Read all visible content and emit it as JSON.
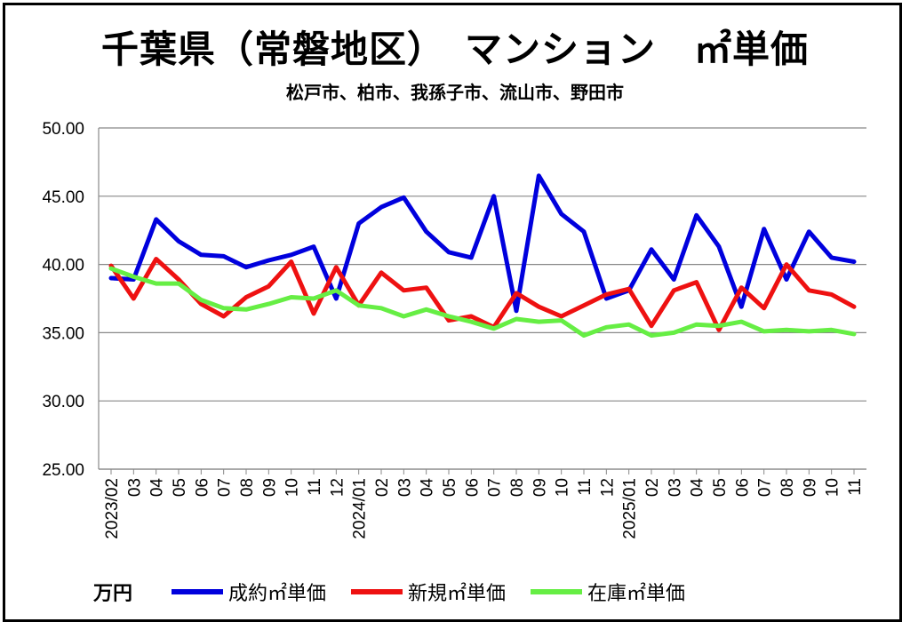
{
  "chart_data": {
    "type": "line",
    "title": "千葉県（常磐地区）　マンション　㎡単価",
    "subtitle": "松戸市、柏市、我孫子市、流山市、野田市",
    "ylabel_unit": "万円",
    "ylim": [
      25,
      50
    ],
    "yticks": [
      "50.00",
      "45.00",
      "40.00",
      "35.00",
      "30.00",
      "25.00"
    ],
    "ytick_values": [
      50,
      45,
      40,
      35,
      30,
      25
    ],
    "categories": [
      "2023/02",
      "03",
      "04",
      "05",
      "06",
      "07",
      "08",
      "09",
      "10",
      "11",
      "12",
      "2024/01",
      "02",
      "03",
      "04",
      "05",
      "06",
      "07",
      "08",
      "09",
      "10",
      "11",
      "12",
      "2025/01",
      "02",
      "03",
      "04",
      "05",
      "06",
      "07",
      "08",
      "09",
      "10",
      "11"
    ],
    "series": [
      {
        "name": "成約㎡単価",
        "color": "#0000dd",
        "values": [
          39.0,
          38.9,
          43.3,
          41.7,
          40.7,
          40.6,
          39.8,
          40.3,
          40.7,
          41.3,
          37.5,
          43.0,
          44.2,
          44.9,
          42.4,
          40.9,
          40.5,
          45.0,
          36.6,
          46.5,
          43.7,
          42.4,
          37.5,
          38.1,
          41.1,
          38.9,
          43.6,
          41.3,
          36.9,
          42.6,
          38.9,
          42.4,
          40.5,
          40.2
        ]
      },
      {
        "name": "新規㎡単価",
        "color": "#ee1111",
        "values": [
          39.9,
          37.5,
          40.4,
          38.9,
          37.1,
          36.2,
          37.6,
          38.4,
          40.2,
          36.4,
          39.8,
          37.0,
          39.4,
          38.1,
          38.3,
          35.9,
          36.2,
          35.4,
          37.9,
          36.9,
          36.2,
          37.0,
          37.8,
          38.2,
          35.5,
          38.1,
          38.7,
          35.2,
          38.3,
          36.8,
          40.0,
          38.1,
          37.8,
          36.9
        ]
      },
      {
        "name": "在庫㎡単価",
        "color": "#66ee44",
        "values": [
          39.7,
          39.1,
          38.6,
          38.6,
          37.4,
          36.8,
          36.7,
          37.1,
          37.6,
          37.5,
          38.1,
          37.0,
          36.8,
          36.2,
          36.7,
          36.2,
          35.8,
          35.3,
          36.0,
          35.8,
          35.9,
          34.8,
          35.4,
          35.6,
          34.8,
          35.0,
          35.6,
          35.5,
          35.8,
          35.1,
          35.2,
          35.1,
          35.2,
          34.9
        ]
      }
    ]
  }
}
